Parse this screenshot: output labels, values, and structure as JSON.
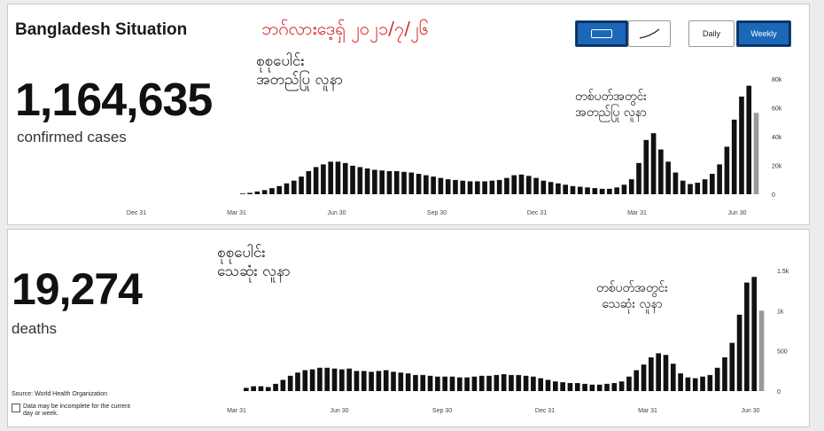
{
  "header": {
    "title": "Bangladesh Situation",
    "date_text": "ဘဂ်လားဒေ့ရှ် ၂၀၂၁/၇/၂၆"
  },
  "toggles": {
    "bar_label": "",
    "line_label": "",
    "daily_label": "Daily",
    "weekly_label": "Weekly"
  },
  "cases": {
    "value": "1,164,635",
    "label": "confirmed cases",
    "annotation_total": [
      "စုစုပေါင်း",
      "အတည်ပြု လူနာ"
    ],
    "annotation_weekly": [
      "တစ်ပတ်အတွင်း",
      "အတည်ပြု လူနာ"
    ]
  },
  "deaths": {
    "value": "19,274",
    "label": "deaths",
    "annotation_total": [
      "စုစုပေါင်း",
      "သေဆုံး လူနာ"
    ],
    "annotation_weekly": [
      "တစ်ပတ်အတွင်း",
      "သေဆုံး လူနာ"
    ]
  },
  "footer": {
    "source": "Source: World Health Organization",
    "note": "Data may be incomplete for the current day or week."
  },
  "chart_data": [
    {
      "type": "bar",
      "series": [
        {
          "name": "",
          "values": [
            500,
            1000,
            2000,
            3000,
            4500,
            6000,
            8000,
            10000,
            13000,
            17000,
            20000,
            22000,
            24000,
            24000,
            23000,
            21000,
            20000,
            19000,
            18000,
            17500,
            17000,
            17000,
            16500,
            16000,
            15000,
            14000,
            13000,
            12000,
            11000,
            10500,
            10000,
            9500,
            9500,
            9500,
            10000,
            10500,
            12000,
            14000,
            14500,
            13500,
            12000,
            10000,
            9000,
            8000,
            7000,
            6000,
            5500,
            5000,
            4500,
            4000,
            4000,
            5000,
            7000,
            11000,
            23000,
            40000,
            45000,
            33000,
            24000,
            16000,
            10000,
            7500,
            8500,
            11000,
            15000,
            22000,
            35000,
            55000,
            72000,
            80000,
            60000
          ]
        }
      ],
      "x_tick_labels": [
        "Dec 31",
        "Mar 31",
        "Jun 30",
        "Sep 30",
        "Dec 31",
        "Mar 31",
        "Jun 30"
      ],
      "y_tick_labels": [
        "80k",
        "60k",
        "40k",
        "20k",
        "0"
      ],
      "ylim": [
        0,
        85000
      ]
    },
    {
      "type": "bar",
      "series": [
        {
          "name": "",
          "values": [
            40,
            60,
            60,
            50,
            90,
            140,
            190,
            230,
            260,
            270,
            290,
            290,
            280,
            270,
            280,
            250,
            250,
            240,
            250,
            260,
            240,
            230,
            220,
            200,
            200,
            190,
            180,
            180,
            180,
            170,
            170,
            180,
            190,
            190,
            200,
            210,
            200,
            200,
            190,
            180,
            160,
            140,
            120,
            110,
            100,
            100,
            90,
            80,
            80,
            90,
            100,
            120,
            180,
            260,
            330,
            420,
            470,
            450,
            340,
            220,
            170,
            160,
            180,
            200,
            290,
            420,
            600,
            950,
            1350,
            1420,
            1000
          ]
        }
      ],
      "x_tick_labels": [
        "Mar 31",
        "Jun 30",
        "Sep 30",
        "Dec 31",
        "Mar 31",
        "Jun 30"
      ],
      "y_tick_labels": [
        "1.5k",
        "1k",
        "500",
        "0"
      ],
      "ylim": [
        0,
        1500
      ]
    }
  ]
}
